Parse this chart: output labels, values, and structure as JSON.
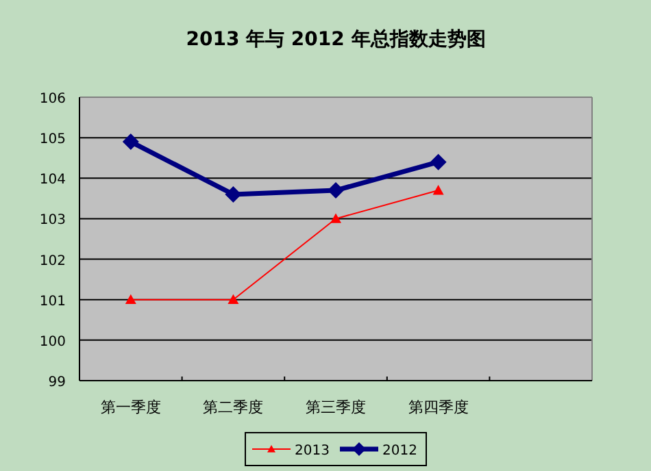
{
  "chart_data": {
    "type": "line",
    "title": "2013 年与 2012 年总指数走势图",
    "categories": [
      "第一季度",
      "第二季度",
      "第三季度",
      "第四季度",
      null
    ],
    "series": [
      {
        "name": "2013",
        "color": "#ff0000",
        "values": [
          101,
          101,
          103,
          103.7,
          null
        ],
        "marker": "triangle"
      },
      {
        "name": "2012",
        "color": "#000080",
        "values": [
          104.9,
          103.6,
          103.7,
          104.4,
          null
        ],
        "marker": "diamond"
      }
    ],
    "ylim": [
      99,
      106
    ],
    "yticks": [
      99,
      100,
      101,
      102,
      103,
      104,
      105,
      106
    ],
    "grid": "y",
    "legend": "bottom",
    "line_style": "solid"
  }
}
